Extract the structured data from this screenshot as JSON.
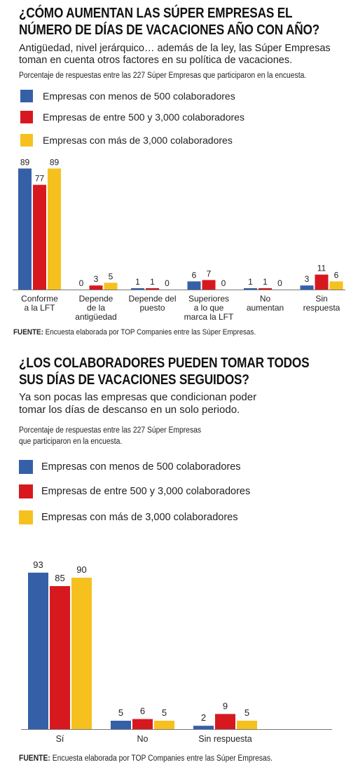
{
  "colors": {
    "blue": "#3560a8",
    "red": "#d7191f",
    "yellow": "#f6c11f"
  },
  "charts": [
    {
      "title_lines": [
        "¿CÓMO AUMENTAN LAS SÚPER EMPRESAS EL",
        "NÚMERO DE DÍAS DE VACACIONES AÑO CON AÑO?"
      ],
      "subtitle_lines": [
        "Antigüedad, nivel jerárquico… además de la ley, las Súper Empresas",
        "toman en cuenta otros factores en su política de vacaciones."
      ],
      "note_lines": [
        "Porcentaje de respuestas entre las 227 Súper Empresas que participaron en la encuesta."
      ],
      "legend": [
        "Empresas con menos de 500 colaboradores",
        "Empresas de entre 500 y 3,000 colaboradores",
        "Empresas con más de 3,000 colaboradores"
      ],
      "source_label": "FUENTE:",
      "source_text": " Encuesta elaborada por TOP Companies entre las Súper Empresas."
    },
    {
      "title_lines": [
        "¿LOS COLABORADORES PUEDEN TOMAR TODOS",
        "SUS DÍAS DE VACACIONES SEGUIDOS?"
      ],
      "subtitle_lines": [
        "Ya son pocas las empresas que condicionan poder",
        "tomar los días de descanso en un solo periodo."
      ],
      "note_lines": [
        "Porcentaje de respuestas entre las 227 Súper Empresas",
        "que participaron en la encuesta."
      ],
      "legend": [
        "Empresas con menos de 500 colaboradores",
        "Empresas de entre 500 y 3,000 colaboradores",
        "Empresas con más de 3,000 colaboradores"
      ],
      "source_label": "FUENTE:",
      "source_text": " Encuesta elaborada por TOP Companies entre las Súper Empresas."
    }
  ],
  "chart_data": [
    {
      "type": "bar",
      "title": "¿CÓMO AUMENTAN LAS SÚPER EMPRESAS EL NÚMERO DE DÍAS DE VACACIONES AÑO CON AÑO?",
      "categories": [
        [
          "Conforme",
          "a la LFT"
        ],
        [
          "Depende",
          "de la",
          "antigüedad"
        ],
        [
          "Depende del",
          "puesto"
        ],
        [
          "Superiores",
          "a lo que",
          "marca la LFT"
        ],
        [
          "No",
          "aumentan"
        ],
        [
          "Sin",
          "respuesta"
        ]
      ],
      "series": [
        {
          "name": "Empresas con menos de 500 colaboradores",
          "values": [
            89,
            0,
            1,
            6,
            1,
            3
          ]
        },
        {
          "name": "Empresas de entre 500 y 3,000 colaboradores",
          "values": [
            77,
            3,
            1,
            7,
            1,
            11
          ]
        },
        {
          "name": "Empresas con más de 3,000 colaboradores",
          "values": [
            89,
            5,
            0,
            0,
            0,
            6
          ]
        }
      ],
      "ylim": [
        0,
        100
      ],
      "grid": false,
      "legend_position": "top-left"
    },
    {
      "type": "bar",
      "title": "¿LOS COLABORADORES PUEDEN TOMAR TODOS SUS DÍAS DE VACACIONES SEGUIDOS?",
      "categories": [
        [
          "Sí"
        ],
        [
          "No"
        ],
        [
          "Sin respuesta"
        ]
      ],
      "series": [
        {
          "name": "Empresas con menos de 500 colaboradores",
          "values": [
            93,
            5,
            2
          ]
        },
        {
          "name": "Empresas de entre 500 y 3,000 colaboradores",
          "values": [
            85,
            6,
            9
          ]
        },
        {
          "name": "Empresas con más de 3,000 colaboradores",
          "values": [
            90,
            5,
            5
          ]
        }
      ],
      "ylim": [
        0,
        100
      ],
      "grid": false,
      "legend_position": "top-left"
    }
  ]
}
